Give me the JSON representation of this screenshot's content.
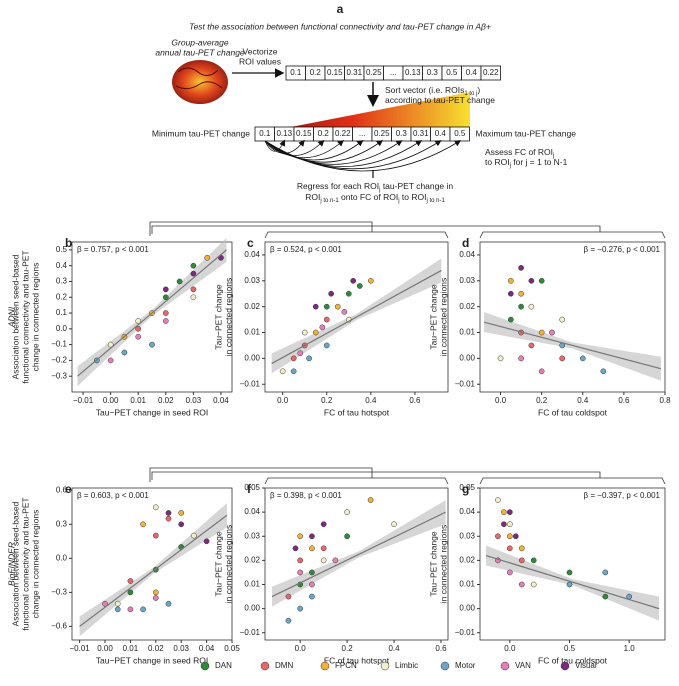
{
  "diagram": {
    "letter": "a",
    "title": "Test the association between functional connectivity and tau-PET change in Aβ+",
    "brain_caption": [
      "Group-average",
      "annual tau-PET change"
    ],
    "vectorize": [
      "Vectorize",
      "ROI values"
    ],
    "vector": [
      "0.1",
      "0.2",
      "0.15",
      "0.31",
      "0.25",
      "...",
      "0.13",
      "0.3",
      "0.5",
      "0.4",
      "0.22"
    ],
    "sort_text": [
      [
        "Sort vector (i.e. ROIs",
        "1 to j",
        ")"
      ],
      [
        "according to tau-PET change"
      ]
    ],
    "sorted_vector": [
      "0.1",
      "0.13",
      "0.15",
      "0.2",
      "0.22",
      "...",
      "0.25",
      "0.3",
      "0.31",
      "0.4",
      "0.5"
    ],
    "min_label": "Minimum tau-PET change",
    "max_label": "Maximum tau-PET change",
    "assess_text": [
      [
        "Assess FC of ROI",
        "j"
      ],
      [
        "to ROI",
        "j",
        " for j = 1 to N-1"
      ]
    ],
    "regress_text": [
      [
        "Regress for each ROI",
        "j",
        " tau-PET change in"
      ],
      [
        "ROI",
        "j to n-1",
        " onto FC of ROI",
        "j",
        " to ROI",
        "j to n-1"
      ]
    ]
  },
  "chart_data": [
    {
      "type": "scatter",
      "panel": "b",
      "row_label": "ADNI",
      "annotation": "β = 0.757, p < 0.001",
      "annotation_corner": "upper left",
      "xlabel": "Tau−PET change in seed ROI",
      "ylabel": [
        "Association between seed-based",
        "functional connectivity and tau-PET",
        "change in connected regions"
      ],
      "xlim": [
        -0.014,
        0.044
      ],
      "ylim": [
        -0.4,
        0.55
      ],
      "xticks": [
        {
          "value": -0.01,
          "label": "−0.01"
        },
        {
          "value": 0,
          "label": "0.00"
        },
        0.01,
        0.02,
        0.03,
        0.04
      ],
      "yticks": [
        {
          "value": -0.3,
          "label": "−0.3"
        },
        {
          "value": -0.2,
          "label": "−0.2"
        },
        {
          "value": -0.1,
          "label": "−0.1"
        },
        {
          "value": 0,
          "label": "0.0"
        },
        0.1,
        0.2,
        0.3,
        0.4,
        0.5
      ],
      "fit_line": {
        "x": [
          -0.012,
          0.042
        ],
        "y": [
          -0.3,
          0.5
        ]
      },
      "series": [
        {
          "name": "DAN",
          "color": "#2e8b3a",
          "x": [
            0.02,
            0.03,
            0.025
          ],
          "values": [
            0.2,
            0.4,
            0.3
          ]
        },
        {
          "name": "DMN",
          "color": "#e8676b",
          "x": [
            0.01,
            0.02,
            0.03
          ],
          "values": [
            0.0,
            0.1,
            0.25
          ]
        },
        {
          "name": "FPCN",
          "color": "#f2b233",
          "x": [
            0.015,
            0.035,
            0.005
          ],
          "values": [
            0.1,
            0.45,
            -0.05
          ]
        },
        {
          "name": "Limbic",
          "color": "#f3efc8",
          "x": [
            0.0,
            0.01,
            0.03
          ],
          "values": [
            -0.1,
            0.05,
            0.2
          ]
        },
        {
          "name": "Motor",
          "color": "#6aa6c8",
          "x": [
            -0.005,
            0.005,
            0.015
          ],
          "values": [
            -0.2,
            -0.15,
            -0.1
          ]
        },
        {
          "name": "VAN",
          "color": "#e67fb5",
          "x": [
            0.0,
            0.01,
            0.02
          ],
          "values": [
            -0.2,
            -0.05,
            0.05
          ]
        },
        {
          "name": "Visual",
          "color": "#7b2a7e",
          "x": [
            0.02,
            0.03,
            0.04
          ],
          "values": [
            0.25,
            0.35,
            0.45
          ]
        }
      ]
    },
    {
      "type": "scatter",
      "panel": "c",
      "annotation": "β = 0.524, p < 0.001",
      "annotation_corner": "upper left",
      "xlabel": "FC of tau hotspot",
      "ylabel": [
        "Tau−PET change",
        "in connected regions"
      ],
      "xlim": [
        -0.08,
        0.75
      ],
      "ylim": [
        -0.013,
        0.045
      ],
      "xticks": [
        {
          "value": 0,
          "label": "0.0"
        },
        0.2,
        0.4,
        0.6
      ],
      "yticks": [
        {
          "value": -0.01,
          "label": "−0.01"
        },
        {
          "value": 0,
          "label": "0.00"
        },
        0.01,
        0.02,
        0.03,
        0.04
      ],
      "fit_line": {
        "x": [
          -0.05,
          0.72
        ],
        "y": [
          -0.002,
          0.034
        ]
      },
      "series": [
        {
          "name": "DAN",
          "color": "#2e8b3a",
          "x": [
            0.3,
            0.2,
            0.35
          ],
          "values": [
            0.025,
            0.02,
            0.028
          ]
        },
        {
          "name": "DMN",
          "color": "#e8676b",
          "x": [
            0.1,
            0.2,
            0.05
          ],
          "values": [
            0.005,
            0.015,
            0.0
          ]
        },
        {
          "name": "FPCN",
          "color": "#f2b233",
          "x": [
            0.15,
            0.25,
            0.4
          ],
          "values": [
            0.01,
            0.02,
            0.03
          ]
        },
        {
          "name": "Limbic",
          "color": "#f3efc8",
          "x": [
            0.0,
            0.1,
            0.3
          ],
          "values": [
            -0.005,
            0.01,
            0.015
          ]
        },
        {
          "name": "Motor",
          "color": "#6aa6c8",
          "x": [
            0.05,
            0.12,
            0.2
          ],
          "values": [
            -0.005,
            0.0,
            0.005
          ]
        },
        {
          "name": "VAN",
          "color": "#e67fb5",
          "x": [
            0.08,
            0.18,
            0.28
          ],
          "values": [
            0.002,
            0.012,
            0.018
          ]
        },
        {
          "name": "Visual",
          "color": "#7b2a7e",
          "x": [
            0.22,
            0.32,
            0.15
          ],
          "values": [
            0.025,
            0.03,
            0.02
          ]
        }
      ]
    },
    {
      "type": "scatter",
      "panel": "d",
      "annotation": "β = −0.276, p < 0.001",
      "annotation_corner": "upper right",
      "xlabel": "FC of tau coldspot",
      "ylabel": [
        "Tau−PET change",
        "in connected regions"
      ],
      "xlim": [
        -0.1,
        0.8
      ],
      "ylim": [
        -0.013,
        0.045
      ],
      "xticks": [
        {
          "value": 0,
          "label": "0.0"
        },
        0.2,
        0.4,
        0.6,
        0.8
      ],
      "yticks": [
        {
          "value": -0.01,
          "label": "−0.01"
        },
        {
          "value": 0,
          "label": "0.00"
        },
        0.01,
        0.02,
        0.03,
        0.04
      ],
      "fit_line": {
        "x": [
          -0.08,
          0.78
        ],
        "y": [
          0.014,
          -0.004
        ]
      },
      "series": [
        {
          "name": "DAN",
          "color": "#2e8b3a",
          "x": [
            0.1,
            0.2,
            0.05
          ],
          "values": [
            0.02,
            0.03,
            0.015
          ]
        },
        {
          "name": "DMN",
          "color": "#e8676b",
          "x": [
            0.1,
            0.15,
            0.3
          ],
          "values": [
            0.01,
            0.005,
            0.0
          ]
        },
        {
          "name": "FPCN",
          "color": "#f2b233",
          "x": [
            0.05,
            0.1,
            0.2
          ],
          "values": [
            0.03,
            0.025,
            0.01
          ]
        },
        {
          "name": "Limbic",
          "color": "#f3efc8",
          "x": [
            0.0,
            0.15,
            0.3
          ],
          "values": [
            0.0,
            0.02,
            0.015
          ]
        },
        {
          "name": "Motor",
          "color": "#6aa6c8",
          "x": [
            0.3,
            0.4,
            0.5
          ],
          "values": [
            0.005,
            0.0,
            -0.005
          ]
        },
        {
          "name": "VAN",
          "color": "#e67fb5",
          "x": [
            0.1,
            0.2,
            0.25
          ],
          "values": [
            0.0,
            -0.005,
            0.01
          ]
        },
        {
          "name": "Visual",
          "color": "#7b2a7e",
          "x": [
            0.1,
            0.15,
            0.05
          ],
          "values": [
            0.035,
            0.03,
            0.025
          ]
        }
      ]
    },
    {
      "type": "scatter",
      "panel": "e",
      "row_label": "BioFINDER",
      "annotation": "β = 0.603, p < 0.001",
      "annotation_corner": "upper left",
      "xlabel": "Tau−PET change in seed ROI",
      "ylabel": [
        "Association between seed-based",
        "functional connectivity and tau-PET",
        "change in connected regions"
      ],
      "xlim": [
        -0.013,
        0.05
      ],
      "ylim": [
        -0.72,
        0.62
      ],
      "xticks": [
        {
          "value": -0.01,
          "label": "−0.01"
        },
        {
          "value": 0,
          "label": "0.00"
        },
        0.01,
        0.02,
        0.03,
        0.04,
        0.05
      ],
      "yticks": [
        {
          "value": -0.6,
          "label": "−0.6"
        },
        {
          "value": -0.3,
          "label": "−0.3"
        },
        {
          "value": 0,
          "label": "0.0"
        },
        0.3,
        0.6
      ],
      "fit_line": {
        "x": [
          -0.01,
          0.048
        ],
        "y": [
          -0.6,
          0.38
        ]
      },
      "series": [
        {
          "name": "DAN",
          "color": "#2e8b3a",
          "x": [
            0.01,
            0.02,
            0.03
          ],
          "values": [
            -0.3,
            -0.1,
            0.1
          ]
        },
        {
          "name": "DMN",
          "color": "#e8676b",
          "x": [
            0.02,
            0.025,
            0.01
          ],
          "values": [
            0.2,
            0.35,
            -0.2
          ]
        },
        {
          "name": "FPCN",
          "color": "#f2b233",
          "x": [
            0.015,
            0.03,
            0.02
          ],
          "values": [
            0.3,
            0.4,
            -0.3
          ]
        },
        {
          "name": "Limbic",
          "color": "#f3efc8",
          "x": [
            0.02,
            0.035,
            0.005
          ],
          "values": [
            0.45,
            0.2,
            -0.4
          ]
        },
        {
          "name": "Motor",
          "color": "#6aa6c8",
          "x": [
            0.005,
            0.015,
            0.025
          ],
          "values": [
            -0.45,
            -0.45,
            -0.4
          ]
        },
        {
          "name": "VAN",
          "color": "#e67fb5",
          "x": [
            0.01,
            0.02,
            0.0
          ],
          "values": [
            -0.45,
            -0.35,
            -0.4
          ]
        },
        {
          "name": "Visual",
          "color": "#7b2a7e",
          "x": [
            0.03,
            0.04,
            0.025
          ],
          "values": [
            0.3,
            0.15,
            0.4
          ]
        }
      ]
    },
    {
      "type": "scatter",
      "panel": "f",
      "annotation": "β = 0.398, p < 0.001",
      "annotation_corner": "upper left",
      "xlabel": "FC of tau hotspot",
      "ylabel": [
        "Tau−PET change",
        "in connected regions"
      ],
      "xlim": [
        -0.15,
        0.63
      ],
      "ylim": [
        -0.013,
        0.05
      ],
      "xticks": [
        {
          "value": 0,
          "label": "0.0"
        },
        0.2,
        0.4,
        0.6
      ],
      "yticks": [
        {
          "value": -0.01,
          "label": "−0.01"
        },
        {
          "value": 0,
          "label": "0.00"
        },
        0.01,
        0.02,
        0.03,
        0.04,
        0.05
      ],
      "fit_line": {
        "x": [
          -0.12,
          0.62
        ],
        "y": [
          0.005,
          0.04
        ]
      },
      "series": [
        {
          "name": "DAN",
          "color": "#2e8b3a",
          "x": [
            0.0,
            0.05,
            0.2
          ],
          "values": [
            0.01,
            0.015,
            0.03
          ]
        },
        {
          "name": "DMN",
          "color": "#e8676b",
          "x": [
            0.0,
            -0.05,
            0.1
          ],
          "values": [
            0.02,
            0.005,
            0.025
          ]
        },
        {
          "name": "FPCN",
          "color": "#f2b233",
          "x": [
            0.0,
            0.05,
            0.3
          ],
          "values": [
            0.03,
            0.025,
            0.045
          ]
        },
        {
          "name": "Limbic",
          "color": "#f3efc8",
          "x": [
            0.1,
            0.2,
            0.4
          ],
          "values": [
            0.02,
            0.04,
            0.035
          ]
        },
        {
          "name": "Motor",
          "color": "#6aa6c8",
          "x": [
            0.0,
            0.05,
            -0.05
          ],
          "values": [
            0.0,
            0.005,
            -0.005
          ]
        },
        {
          "name": "VAN",
          "color": "#e67fb5",
          "x": [
            0.0,
            0.05,
            0.15
          ],
          "values": [
            0.015,
            0.01,
            0.02
          ]
        },
        {
          "name": "Visual",
          "color": "#7b2a7e",
          "x": [
            0.05,
            -0.02,
            0.1
          ],
          "values": [
            0.03,
            0.025,
            0.035
          ]
        }
      ]
    },
    {
      "type": "scatter",
      "panel": "g",
      "annotation": "β = −0.397, p < 0.001",
      "annotation_corner": "upper right",
      "xlabel": "FC of tau coldspot",
      "ylabel": [
        "Tau−PET change",
        "in connected regions"
      ],
      "xlim": [
        -0.25,
        1.3
      ],
      "ylim": [
        -0.013,
        0.05
      ],
      "xticks": [
        {
          "value": 0,
          "label": "0.0"
        },
        0.5,
        {
          "value": 1,
          "label": "1.0"
        }
      ],
      "yticks": [
        {
          "value": -0.01,
          "label": "−0.01"
        },
        {
          "value": 0,
          "label": "0.00"
        },
        0.01,
        0.02,
        0.03,
        0.04,
        0.05
      ],
      "fit_line": {
        "x": [
          -0.2,
          1.25
        ],
        "y": [
          0.022,
          0.0
        ]
      },
      "series": [
        {
          "name": "DAN",
          "color": "#2e8b3a",
          "x": [
            0.2,
            0.5,
            0.8
          ],
          "values": [
            0.02,
            0.015,
            0.005
          ]
        },
        {
          "name": "DMN",
          "color": "#e8676b",
          "x": [
            0.0,
            0.1,
            -0.1
          ],
          "values": [
            0.025,
            0.02,
            0.03
          ]
        },
        {
          "name": "FPCN",
          "color": "#f2b233",
          "x": [
            0.0,
            -0.05,
            0.1
          ],
          "values": [
            0.03,
            0.04,
            0.025
          ]
        },
        {
          "name": "Limbic",
          "color": "#f3efc8",
          "x": [
            0.0,
            0.2,
            -0.1
          ],
          "values": [
            0.035,
            0.01,
            0.045
          ]
        },
        {
          "name": "Motor",
          "color": "#6aa6c8",
          "x": [
            0.5,
            1.0,
            0.8
          ],
          "values": [
            0.01,
            0.005,
            0.015
          ]
        },
        {
          "name": "VAN",
          "color": "#e67fb5",
          "x": [
            0.0,
            0.1,
            -0.1
          ],
          "values": [
            0.015,
            0.01,
            0.02
          ]
        },
        {
          "name": "Visual",
          "color": "#7b2a7e",
          "x": [
            -0.05,
            0.05,
            0.0
          ],
          "values": [
            0.035,
            0.03,
            0.04
          ]
        }
      ]
    }
  ]
}
